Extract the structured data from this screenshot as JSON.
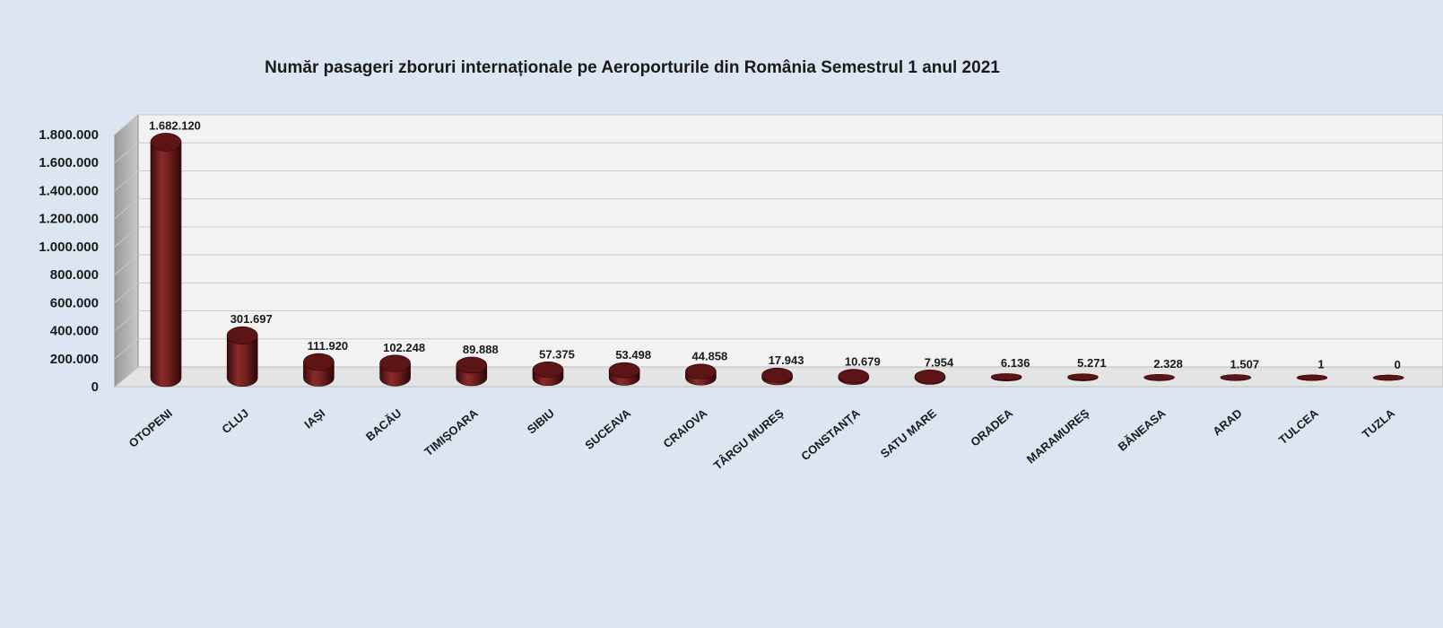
{
  "chart_data": {
    "type": "bar",
    "title": "Număr pasageri zboruri internaționale  pe Aeroporturile  din România Semestrul  1 anul 2021",
    "xlabel": "",
    "ylabel": "",
    "categories": [
      "OTOPENI",
      "CLUJ",
      "IAȘI",
      "BACĂU",
      "TIMIȘOARA",
      "SIBIU",
      "SUCEAVA",
      "CRAIOVA",
      "TÂRGU MUREȘ",
      "CONSTANȚA",
      "SATU MARE",
      "ORADEA",
      "MARAMUREȘ",
      "BĂNEASA",
      "ARAD",
      "TULCEA",
      "TUZLA"
    ],
    "values": [
      1682120,
      301697,
      111920,
      102248,
      89888,
      57375,
      53498,
      44858,
      17943,
      10679,
      7954,
      6136,
      5271,
      2328,
      1507,
      1,
      0
    ],
    "value_labels": [
      "1.682.120",
      "301.697",
      "111.920",
      "102.248",
      "89.888",
      "57.375",
      "53.498",
      "44.858",
      "17.943",
      "10.679",
      "7.954",
      "6.136",
      "5.271",
      "2.328",
      "1.507",
      "1",
      "0"
    ],
    "ylim": [
      0,
      1800000
    ],
    "yticks": [
      0,
      200000,
      400000,
      600000,
      800000,
      1000000,
      1200000,
      1400000,
      1600000,
      1800000
    ],
    "ytick_labels": [
      "0",
      "200.000",
      "400.000",
      "600.000",
      "800.000",
      "1.000.000",
      "1.200.000",
      "1.400.000",
      "1.600.000",
      "1.800.000"
    ],
    "grid": true,
    "style": "3d-cylinder",
    "bar_color": "#6b1c1c",
    "background_color": "#dce6f2",
    "plot_wall_color": "#f2f2f2"
  }
}
